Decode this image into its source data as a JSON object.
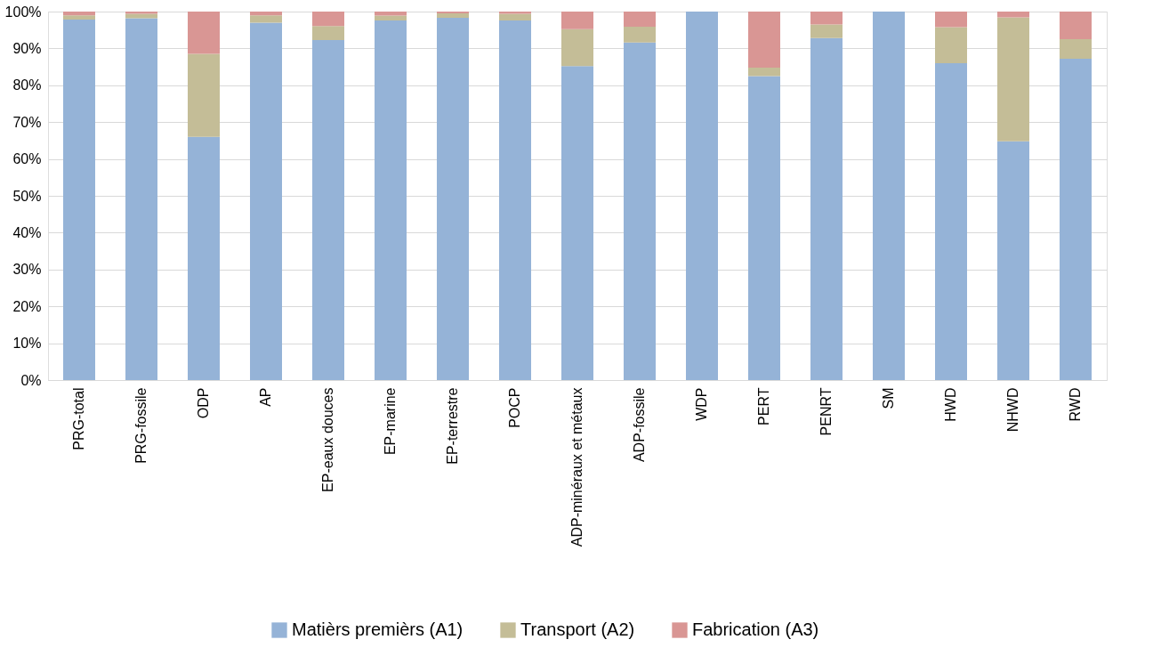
{
  "chart_data": {
    "type": "bar",
    "stacked": true,
    "categories": [
      "PRG-total",
      "PRG-fossile",
      "ODP",
      "AP",
      "EP-eaux douces",
      "EP-marine",
      "EP-terrestre",
      "POCP",
      "ADP-minéraux et métaux",
      "ADP-fossile",
      "WDP",
      "PERT",
      "PENRT",
      "SM",
      "HWD",
      "NHWD",
      "RWD"
    ],
    "series": [
      {
        "name": "Matièrs premièrs (A1)",
        "color": "#95b3d7",
        "values": [
          97.8,
          98.2,
          66,
          97,
          92.3,
          97.6,
          98.3,
          97.6,
          85.2,
          91.6,
          100,
          82.5,
          92.8,
          100,
          86,
          64.8,
          87.2
        ]
      },
      {
        "name": "Transport (A2)",
        "color": "#c4bd97",
        "values": [
          1.2,
          1.2,
          22.5,
          2,
          3.8,
          1.3,
          1.2,
          1.8,
          10,
          4.3,
          0,
          2.3,
          3.7,
          0,
          9.8,
          33.6,
          5.3
        ]
      },
      {
        "name": "Fabrication (A3)",
        "color": "#d99694",
        "values": [
          1.0,
          0.6,
          11.5,
          1,
          3.9,
          1.1,
          0.5,
          0.6,
          4.8,
          4.1,
          0,
          15.2,
          3.5,
          0,
          4.2,
          1.6,
          7.5
        ]
      }
    ],
    "ylim": [
      0,
      100
    ],
    "yticks": [
      {
        "value": 0,
        "label": "0%"
      },
      {
        "value": 10,
        "label": "10%"
      },
      {
        "value": 20,
        "label": "20%"
      },
      {
        "value": 30,
        "label": "30%"
      },
      {
        "value": 40,
        "label": "40%"
      },
      {
        "value": 50,
        "label": "50%"
      },
      {
        "value": 60,
        "label": "60%"
      },
      {
        "value": 70,
        "label": "70%"
      },
      {
        "value": 80,
        "label": "80%"
      },
      {
        "value": 90,
        "label": "90%"
      },
      {
        "value": 100,
        "label": "100%"
      }
    ],
    "grid": "y",
    "legend": "bottom"
  }
}
